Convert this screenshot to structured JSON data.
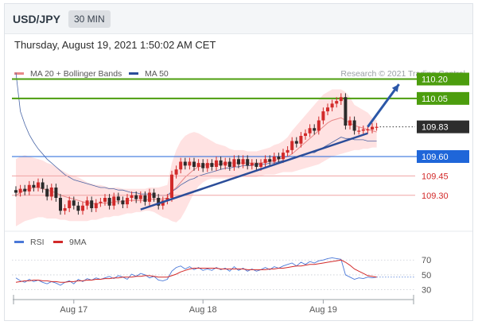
{
  "header": {
    "pair": "USD/JPY",
    "timeframe": "30 MIN"
  },
  "timestamp": "Thursday, August 19, 2021 1:50:02 AM CET",
  "credit": "Research © 2021 Trading Central",
  "colors": {
    "bull": "#d22a2a",
    "bear": "#2a2a2a",
    "ma50": "#2b4d99",
    "ma20": "#e88888",
    "bb_fill": "#ffd8d8",
    "green": "#4c9d0e",
    "blue": "#1f66d9",
    "red_level": "#d22a2a",
    "dark_tag": "#2d2d2d",
    "rsi": "#4a78d8",
    "rsi_ma": "#d22a2a",
    "trend": "#2b4d99",
    "arrow": "#2b57a8"
  },
  "chart_data": [
    {
      "type": "line",
      "title": "",
      "legend": [
        {
          "name": "MA 20 + Bollinger Bands",
          "color": "#e88888"
        },
        {
          "name": "MA 50",
          "color": "#2b4d99"
        }
      ],
      "ylim": [
        109.04,
        110.32
      ],
      "x_ticks": [
        "Aug 17",
        "Aug 18",
        "Aug 19"
      ],
      "x_tick_index": [
        13,
        42,
        69
      ],
      "n_bars": 82,
      "close": [
        109.32,
        109.35,
        109.33,
        109.38,
        109.36,
        109.4,
        109.35,
        109.29,
        109.36,
        109.28,
        109.18,
        109.2,
        109.26,
        109.22,
        109.18,
        109.22,
        109.26,
        109.2,
        109.24,
        109.25,
        109.28,
        109.22,
        109.29,
        109.26,
        109.23,
        109.28,
        109.3,
        109.27,
        109.3,
        109.25,
        109.32,
        109.28,
        109.22,
        109.26,
        109.28,
        109.46,
        109.5,
        109.56,
        109.53,
        109.56,
        109.52,
        109.55,
        109.51,
        109.55,
        109.52,
        109.57,
        109.53,
        109.56,
        109.52,
        109.58,
        109.54,
        109.58,
        109.53,
        109.55,
        109.52,
        109.55,
        109.58,
        109.56,
        109.6,
        109.58,
        109.63,
        109.65,
        109.72,
        109.7,
        109.76,
        109.78,
        109.82,
        109.8,
        109.88,
        109.95,
        109.98,
        110.01,
        110.03,
        110.06,
        109.84,
        109.88,
        109.8,
        109.8,
        109.81,
        109.81,
        109.83,
        109.83
      ],
      "ma50": [
        110.25,
        109.95,
        109.85,
        109.77,
        109.71,
        109.66,
        109.62,
        109.58,
        109.55,
        109.52,
        109.49,
        109.46,
        109.44,
        109.42,
        109.41,
        109.4,
        109.39,
        109.38,
        109.37,
        109.36,
        109.36,
        109.35,
        109.35,
        109.34,
        109.34,
        109.33,
        109.32,
        109.32,
        109.31,
        109.31,
        109.31,
        109.3,
        109.3,
        109.3,
        109.3,
        109.33,
        109.35,
        109.38,
        109.4,
        109.42,
        109.43,
        109.45,
        109.46,
        109.47,
        109.48,
        109.49,
        109.5,
        109.51,
        109.51,
        109.52,
        109.52,
        109.53,
        109.53,
        109.53,
        109.54,
        109.54,
        109.54,
        109.55,
        109.55,
        109.56,
        109.57,
        109.57,
        109.59,
        109.59,
        109.61,
        109.62,
        109.63,
        109.63,
        109.65,
        109.67,
        109.69,
        109.71,
        109.73,
        109.75,
        109.74,
        109.74,
        109.73,
        109.73,
        109.73,
        109.72,
        109.72,
        109.72
      ],
      "bb_upper": [
        109.58,
        109.6,
        109.61,
        109.6,
        109.59,
        109.58,
        109.57,
        109.55,
        109.54,
        109.52,
        109.5,
        109.48,
        109.46,
        109.45,
        109.44,
        109.42,
        109.4,
        109.39,
        109.38,
        109.38,
        109.37,
        109.36,
        109.36,
        109.36,
        109.35,
        109.35,
        109.35,
        109.35,
        109.35,
        109.35,
        109.36,
        109.36,
        109.36,
        109.37,
        109.38,
        109.55,
        109.65,
        109.72,
        109.76,
        109.78,
        109.79,
        109.78,
        109.76,
        109.74,
        109.72,
        109.7,
        109.69,
        109.68,
        109.66,
        109.65,
        109.65,
        109.65,
        109.64,
        109.64,
        109.64,
        109.65,
        109.66,
        109.67,
        109.69,
        109.7,
        109.72,
        109.75,
        109.8,
        109.84,
        109.88,
        109.92,
        109.96,
        110.0,
        110.04,
        110.08,
        110.1,
        110.12,
        110.12,
        110.12,
        110.1,
        110.06,
        110.0,
        109.98,
        109.96,
        109.94,
        109.9,
        109.88
      ],
      "bb_lower": [
        109.06,
        109.08,
        109.1,
        109.11,
        109.12,
        109.13,
        109.13,
        109.12,
        109.12,
        109.12,
        109.11,
        109.11,
        109.1,
        109.1,
        109.1,
        109.1,
        109.1,
        109.11,
        109.11,
        109.12,
        109.13,
        109.13,
        109.14,
        109.14,
        109.15,
        109.16,
        109.16,
        109.17,
        109.17,
        109.18,
        109.18,
        109.17,
        109.15,
        109.13,
        109.12,
        109.1,
        109.09,
        109.12,
        109.18,
        109.25,
        109.32,
        109.37,
        109.4,
        109.42,
        109.43,
        109.43,
        109.43,
        109.43,
        109.43,
        109.43,
        109.44,
        109.44,
        109.44,
        109.44,
        109.44,
        109.45,
        109.46,
        109.46,
        109.46,
        109.47,
        109.48,
        109.48,
        109.48,
        109.49,
        109.5,
        109.51,
        109.52,
        109.53,
        109.54,
        109.56,
        109.58,
        109.6,
        109.61,
        109.62,
        109.63,
        109.64,
        109.65,
        109.65,
        109.66,
        109.66,
        109.67,
        109.67
      ],
      "bb_mid": [
        109.3,
        109.32,
        109.34,
        109.35,
        109.36,
        109.36,
        109.35,
        109.34,
        109.33,
        109.32,
        109.3,
        109.29,
        109.28,
        109.27,
        109.26,
        109.25,
        109.24,
        109.24,
        109.23,
        109.24,
        109.24,
        109.24,
        109.25,
        109.25,
        109.25,
        109.26,
        109.26,
        109.26,
        109.26,
        109.26,
        109.27,
        109.27,
        109.27,
        109.27,
        109.28,
        109.33,
        109.36,
        109.4,
        109.44,
        109.47,
        109.5,
        109.52,
        109.53,
        109.54,
        109.54,
        109.54,
        109.54,
        109.55,
        109.55,
        109.55,
        109.55,
        109.55,
        109.55,
        109.55,
        109.55,
        109.55,
        109.56,
        109.56,
        109.57,
        109.58,
        109.59,
        109.6,
        109.62,
        109.65,
        109.68,
        109.71,
        109.74,
        109.77,
        109.8,
        109.83,
        109.86,
        109.88,
        109.89,
        109.9,
        109.88,
        109.86,
        109.84,
        109.83,
        109.82,
        109.81,
        109.8,
        109.79
      ],
      "trendline": [
        [
          28,
          109.19
        ],
        [
          79,
          109.78
        ]
      ],
      "forecast_arrow": [
        [
          79,
          109.83
        ],
        [
          86,
          110.16
        ]
      ],
      "levels": [
        {
          "value": 110.2,
          "label": "110.20",
          "style": "green"
        },
        {
          "value": 110.05,
          "label": "110.05",
          "style": "green"
        },
        {
          "value": 109.83,
          "label": "109.83",
          "style": "current"
        },
        {
          "value": 109.6,
          "label": "109.60",
          "style": "blue"
        },
        {
          "value": 109.45,
          "label": "109.45",
          "style": "red"
        },
        {
          "value": 109.3,
          "label": "109.30",
          "style": "red"
        }
      ]
    },
    {
      "type": "line",
      "title": "",
      "legend": [
        {
          "name": "RSI",
          "color": "#4a78d8"
        },
        {
          "name": "9MA",
          "color": "#d22a2a"
        }
      ],
      "ylim": [
        20,
        82
      ],
      "y_ticks": [
        70,
        50,
        30
      ],
      "rsi": [
        46,
        42,
        40,
        44,
        41,
        43,
        40,
        38,
        41,
        39,
        36,
        40,
        42,
        38,
        44,
        41,
        45,
        43,
        46,
        44,
        46,
        48,
        45,
        49,
        47,
        44,
        51,
        48,
        52,
        50,
        46,
        48,
        43,
        42,
        44,
        55,
        60,
        62,
        58,
        61,
        57,
        60,
        56,
        58,
        56,
        60,
        57,
        59,
        55,
        61,
        56,
        59,
        55,
        58,
        55,
        57,
        60,
        57,
        61,
        59,
        62,
        64,
        66,
        62,
        67,
        64,
        68,
        66,
        69,
        70,
        72,
        73,
        72,
        71,
        50,
        47,
        44,
        46,
        45,
        47,
        46,
        47
      ],
      "rsi_ma": [
        40,
        41,
        42,
        42,
        43,
        43,
        42,
        42,
        41,
        41,
        40,
        40,
        41,
        41,
        42,
        42,
        43,
        43,
        44,
        44,
        45,
        45,
        46,
        46,
        47,
        47,
        47,
        48,
        48,
        49,
        49,
        48,
        47,
        47,
        47,
        49,
        51,
        54,
        56,
        58,
        59,
        59,
        59,
        59,
        59,
        59,
        58,
        58,
        58,
        58,
        58,
        58,
        57,
        57,
        57,
        57,
        57,
        58,
        58,
        59,
        59,
        60,
        61,
        62,
        62,
        63,
        64,
        64,
        65,
        66,
        67,
        68,
        69,
        70,
        67,
        63,
        58,
        55,
        52,
        49,
        48,
        47
      ]
    }
  ]
}
